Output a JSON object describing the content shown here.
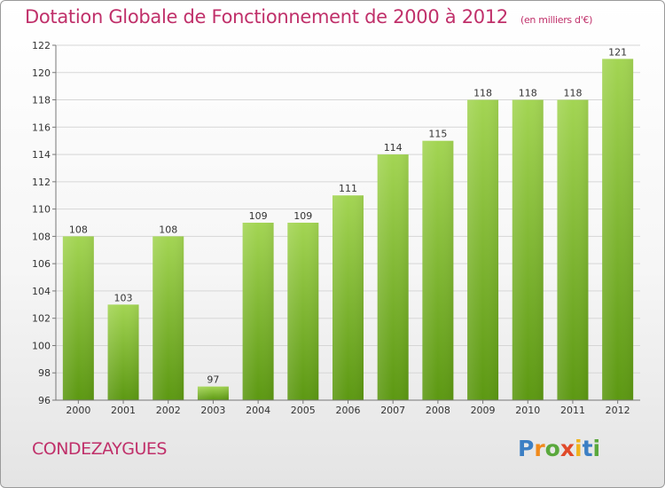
{
  "chart_data": {
    "type": "bar",
    "title": "Dotation Globale de Fonctionnement de 2000 à 2012",
    "subtitle": "(en milliers d'€)",
    "categories": [
      "2000",
      "2001",
      "2002",
      "2003",
      "2004",
      "2005",
      "2006",
      "2007",
      "2008",
      "2009",
      "2010",
      "2011",
      "2012"
    ],
    "values": [
      108,
      103,
      108,
      97,
      109,
      109,
      111,
      114,
      115,
      118,
      118,
      118,
      121
    ],
    "yticks": [
      "96",
      "98",
      "100",
      "102",
      "104",
      "106",
      "108",
      "110",
      "112",
      "114",
      "116",
      "118",
      "120",
      "122"
    ],
    "ylim": [
      96,
      122
    ],
    "grid": true,
    "colors": {
      "bar_top": "#9ed04a",
      "bar_bottom": "#5e9a10",
      "title": "#c0306a"
    }
  },
  "location": "CONDEZAYGUES",
  "logo": {
    "text": "Proxiti"
  }
}
